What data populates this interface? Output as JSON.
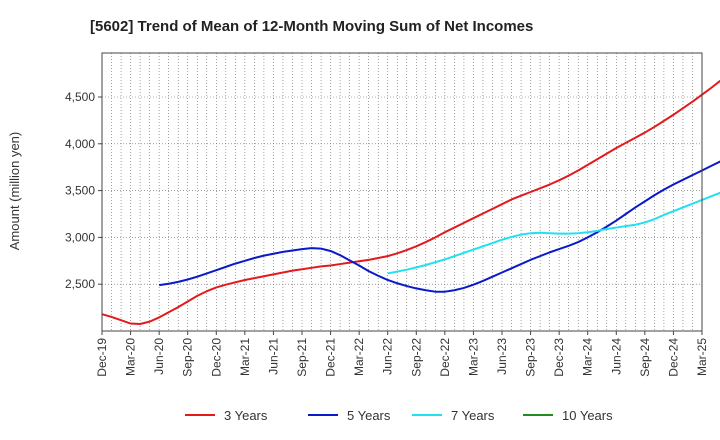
{
  "chart_data": {
    "type": "line",
    "title": "[5602]  Trend of Mean of 12-Month Moving Sum of Net Incomes",
    "xlabel": "",
    "ylabel": "Amount (million yen)",
    "x_tick_labels": [
      "Dec-19",
      "Mar-20",
      "Jun-20",
      "Sep-20",
      "Dec-20",
      "Mar-21",
      "Jun-21",
      "Sep-21",
      "Dec-21",
      "Mar-22",
      "Jun-22",
      "Sep-22",
      "Dec-22",
      "Mar-23",
      "Jun-23",
      "Sep-23",
      "Dec-23",
      "Mar-24",
      "Jun-24",
      "Sep-24",
      "Dec-24",
      "Mar-25"
    ],
    "y_ticks": [
      2500,
      3000,
      3500,
      4000,
      4500
    ],
    "y_tick_labels": [
      "2,500",
      "3,000",
      "3,500",
      "4,000",
      "4,500"
    ],
    "ylim": [
      2000,
      4970
    ],
    "grid": true,
    "legend_placement": "bottom",
    "series": [
      {
        "name": "3 Years",
        "color": "#e31a1c",
        "start_index": 0,
        "values": [
          2180,
          2150,
          2115,
          2080,
          2075,
          2100,
          2145,
          2200,
          2255,
          2315,
          2375,
          2425,
          2465,
          2495,
          2520,
          2545,
          2565,
          2585,
          2605,
          2625,
          2645,
          2660,
          2675,
          2690,
          2700,
          2715,
          2730,
          2745,
          2760,
          2780,
          2800,
          2830,
          2865,
          2905,
          2950,
          3000,
          3055,
          3105,
          3155,
          3205,
          3255,
          3305,
          3355,
          3405,
          3445,
          3485,
          3525,
          3565,
          3610,
          3660,
          3715,
          3775,
          3835,
          3895,
          3955,
          4010,
          4065,
          4120,
          4180,
          4245,
          4310,
          4380,
          4450,
          4525,
          4600,
          4680,
          4760,
          4850
        ]
      },
      {
        "name": "5 Years",
        "color": "#0a1ac8",
        "start_index": 6,
        "values": [
          2490,
          2505,
          2525,
          2550,
          2580,
          2615,
          2650,
          2685,
          2720,
          2750,
          2780,
          2805,
          2825,
          2845,
          2860,
          2875,
          2885,
          2880,
          2855,
          2810,
          2755,
          2700,
          2640,
          2590,
          2545,
          2510,
          2480,
          2455,
          2435,
          2420,
          2420,
          2435,
          2460,
          2495,
          2535,
          2580,
          2625,
          2670,
          2715,
          2760,
          2800,
          2840,
          2875,
          2910,
          2950,
          3000,
          3055,
          3115,
          3180,
          3250,
          3320,
          3385,
          3450,
          3510,
          3565,
          3615,
          3665,
          3715,
          3765,
          3815,
          3860,
          3905,
          3945,
          3985,
          4025,
          4060,
          4100
        ]
      },
      {
        "name": "7 Years",
        "color": "#22e0f0",
        "start_index": 30,
        "values": [
          2615,
          2635,
          2655,
          2680,
          2705,
          2735,
          2765,
          2800,
          2835,
          2870,
          2905,
          2940,
          2975,
          3005,
          3030,
          3045,
          3050,
          3045,
          3040,
          3040,
          3045,
          3055,
          3070,
          3090,
          3105,
          3120,
          3135,
          3160,
          3195,
          3240,
          3280,
          3320,
          3360,
          3400,
          3440,
          3480,
          3515
        ]
      },
      {
        "name": "10 Years",
        "color": "#228b22",
        "start_index": 0,
        "values": []
      }
    ]
  }
}
